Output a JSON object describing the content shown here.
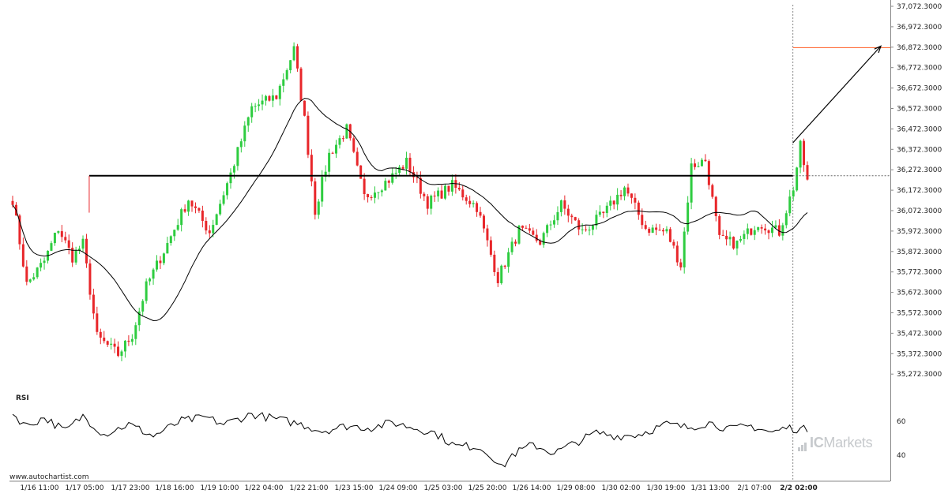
{
  "chart_data": {
    "type": "candlestick",
    "price_axis": {
      "ticks": [
        "37,072.3000",
        "36,972.3000",
        "36,872.3000",
        "36,772.3000",
        "36,672.3000",
        "36,572.3000",
        "36,472.3000",
        "36,372.3000",
        "36,272.3000",
        "36,172.3000",
        "36,072.3000",
        "35,972.3000",
        "35,872.3000",
        "35,772.3000",
        "35,672.3000",
        "35,572.3000",
        "35,472.3000",
        "35,372.3000",
        "35,272.3000"
      ],
      "range": [
        35172.3,
        37082.3
      ]
    },
    "time_axis": {
      "ticks": [
        "1/16 11:00",
        "1/17 05:00",
        "1/17 23:00",
        "1/18 16:00",
        "1/19 10:00",
        "1/22 04:00",
        "1/22 21:00",
        "1/23 15:00",
        "1/24 09:00",
        "1/25 03:00",
        "1/25 20:00",
        "1/26 14:00",
        "1/29 08:00",
        "1/30 02:00",
        "1/30 19:00",
        "1/31 13:00",
        "2/1 07:00",
        "2/2 02:00"
      ],
      "highlight_tick": "2/2 02:00"
    },
    "colors": {
      "up": "#2ecc40",
      "down": "#e8262a",
      "ma": "#000000",
      "level": "#000000",
      "target": "#ff5a1f",
      "arrow": "#000000"
    },
    "anchors": [
      [
        0,
        36130
      ],
      [
        4,
        35690
      ],
      [
        9,
        35810
      ],
      [
        13,
        35980
      ],
      [
        17,
        35830
      ],
      [
        20,
        35900
      ],
      [
        24,
        35420
      ],
      [
        30,
        35330
      ],
      [
        34,
        35430
      ],
      [
        38,
        35680
      ],
      [
        44,
        35900
      ],
      [
        50,
        36130
      ],
      [
        56,
        35960
      ],
      [
        62,
        36260
      ],
      [
        68,
        36600
      ],
      [
        75,
        36660
      ],
      [
        80,
        36900
      ],
      [
        83,
        36540
      ],
      [
        86,
        36070
      ],
      [
        90,
        36360
      ],
      [
        95,
        36490
      ],
      [
        100,
        36140
      ],
      [
        107,
        36230
      ],
      [
        112,
        36320
      ],
      [
        118,
        36110
      ],
      [
        125,
        36200
      ],
      [
        132,
        36090
      ],
      [
        138,
        35720
      ],
      [
        144,
        35970
      ],
      [
        150,
        35910
      ],
      [
        156,
        36100
      ],
      [
        162,
        35960
      ],
      [
        168,
        36050
      ],
      [
        174,
        36190
      ],
      [
        180,
        35980
      ],
      [
        186,
        35960
      ],
      [
        190,
        35790
      ],
      [
        193,
        36300
      ],
      [
        197,
        36330
      ],
      [
        201,
        35920
      ],
      [
        206,
        35900
      ],
      [
        212,
        36010
      ],
      [
        218,
        35960
      ],
      [
        222,
        36190
      ],
      [
        224,
        36400
      ],
      [
        226,
        36220
      ]
    ],
    "candle_count": 227,
    "moving_average": {
      "period": 20
    },
    "resistance_level": {
      "value": 36250,
      "from_index": 22
    },
    "target_level": {
      "value": 36910,
      "from_index": 223
    },
    "projection_arrow": {
      "from": [
        223,
        36420
      ],
      "to": [
        246,
        36910
      ]
    },
    "rsi": {
      "label": "RSI",
      "ticks": [
        "60",
        "40"
      ],
      "range": [
        30,
        70
      ],
      "anchors": [
        [
          0,
          64
        ],
        [
          4,
          57
        ],
        [
          9,
          62
        ],
        [
          15,
          54
        ],
        [
          20,
          63
        ],
        [
          26,
          52
        ],
        [
          33,
          58
        ],
        [
          40,
          51
        ],
        [
          48,
          60
        ],
        [
          55,
          62
        ],
        [
          60,
          58
        ],
        [
          68,
          64
        ],
        [
          75,
          61
        ],
        [
          82,
          58
        ],
        [
          88,
          54
        ],
        [
          95,
          57
        ],
        [
          102,
          56
        ],
        [
          108,
          59
        ],
        [
          114,
          56
        ],
        [
          120,
          53
        ],
        [
          126,
          45
        ],
        [
          132,
          45
        ],
        [
          136,
          40
        ],
        [
          139,
          32
        ],
        [
          142,
          40
        ],
        [
          148,
          46
        ],
        [
          154,
          41
        ],
        [
          160,
          47
        ],
        [
          166,
          53
        ],
        [
          172,
          51
        ],
        [
          178,
          52
        ],
        [
          186,
          58
        ],
        [
          192,
          56
        ],
        [
          198,
          59
        ],
        [
          204,
          55
        ],
        [
          210,
          57
        ],
        [
          216,
          53
        ],
        [
          220,
          56
        ],
        [
          224,
          55
        ]
      ]
    }
  },
  "footer": {
    "source": "www.autochartist.com"
  },
  "brand": {
    "ic": "IC",
    "name": "Markets"
  }
}
